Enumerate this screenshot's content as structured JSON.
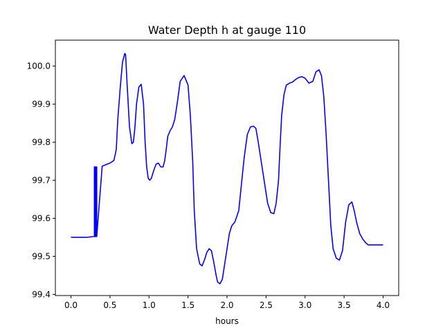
{
  "chart_data": {
    "type": "line",
    "title": "Water Depth h at gauge 110",
    "xlabel": "hours",
    "ylabel": "",
    "xlim": [
      -0.2,
      4.2
    ],
    "ylim": [
      99.397,
      100.068
    ],
    "xticks": [
      0.0,
      0.5,
      1.0,
      1.5,
      2.0,
      2.5,
      3.0,
      3.5,
      4.0
    ],
    "xtick_labels": [
      "0.0",
      "0.5",
      "1.0",
      "1.5",
      "2.0",
      "2.5",
      "3.0",
      "3.5",
      "4.0"
    ],
    "yticks": [
      99.4,
      99.5,
      99.6,
      99.7,
      99.8,
      99.9,
      100.0
    ],
    "ytick_labels": [
      "99.4",
      "99.5",
      "99.6",
      "99.7",
      "99.8",
      "99.9",
      "100.0"
    ],
    "grid": false,
    "legend": "none",
    "series": [
      {
        "color": "#0000ff",
        "x": [
          0.0,
          0.1,
          0.2,
          0.29,
          0.3,
          0.3,
          0.31,
          0.31,
          0.32,
          0.32,
          0.33,
          0.33,
          0.4,
          0.5,
          0.55,
          0.58,
          0.6,
          0.63,
          0.66,
          0.69,
          0.7,
          0.72,
          0.75,
          0.78,
          0.8,
          0.82,
          0.84,
          0.87,
          0.9,
          0.93,
          0.95,
          0.97,
          0.99,
          1.01,
          1.03,
          1.06,
          1.09,
          1.12,
          1.15,
          1.18,
          1.2,
          1.22,
          1.24,
          1.27,
          1.3,
          1.33,
          1.36,
          1.4,
          1.45,
          1.5,
          1.53,
          1.56,
          1.58,
          1.61,
          1.65,
          1.68,
          1.71,
          1.74,
          1.77,
          1.8,
          1.83,
          1.86,
          1.88,
          1.91,
          1.94,
          1.97,
          2.0,
          2.03,
          2.06,
          2.1,
          2.15,
          2.18,
          2.22,
          2.26,
          2.3,
          2.34,
          2.37,
          2.4,
          2.43,
          2.46,
          2.49,
          2.52,
          2.56,
          2.6,
          2.63,
          2.66,
          2.68,
          2.7,
          2.73,
          2.76,
          2.8,
          2.84,
          2.88,
          2.92,
          2.96,
          3.0,
          3.05,
          3.1,
          3.14,
          3.18,
          3.21,
          3.24,
          3.27,
          3.3,
          3.33,
          3.36,
          3.4,
          3.44,
          3.48,
          3.52,
          3.56,
          3.6,
          3.63,
          3.66,
          3.7,
          3.74,
          3.78,
          3.81,
          3.84,
          3.87,
          3.9,
          3.93,
          3.96,
          4.0
        ],
        "y": [
          99.55,
          99.55,
          99.55,
          99.552,
          99.552,
          99.735,
          99.735,
          99.552,
          99.552,
          99.735,
          99.735,
          99.552,
          99.737,
          99.745,
          99.752,
          99.78,
          99.86,
          99.94,
          100.01,
          100.033,
          100.03,
          99.95,
          99.84,
          99.796,
          99.8,
          99.84,
          99.9,
          99.945,
          99.952,
          99.9,
          99.8,
          99.735,
          99.705,
          99.7,
          99.705,
          99.725,
          99.742,
          99.745,
          99.735,
          99.735,
          99.75,
          99.78,
          99.815,
          99.83,
          99.84,
          99.86,
          99.9,
          99.96,
          99.975,
          99.95,
          99.87,
          99.75,
          99.62,
          99.52,
          99.48,
          99.475,
          99.49,
          99.51,
          99.52,
          99.515,
          99.485,
          99.45,
          99.432,
          99.428,
          99.44,
          99.48,
          99.52,
          99.56,
          99.58,
          99.59,
          99.62,
          99.68,
          99.76,
          99.82,
          99.84,
          99.842,
          99.836,
          99.8,
          99.76,
          99.72,
          99.68,
          99.64,
          99.615,
          99.612,
          99.64,
          99.7,
          99.79,
          99.87,
          99.925,
          99.95,
          99.955,
          99.958,
          99.965,
          99.97,
          99.972,
          99.968,
          99.955,
          99.96,
          99.985,
          99.99,
          99.975,
          99.92,
          99.82,
          99.7,
          99.58,
          99.52,
          99.495,
          99.49,
          99.515,
          99.59,
          99.635,
          99.643,
          99.62,
          99.59,
          99.56,
          99.545,
          99.535,
          99.53,
          99.53,
          99.53,
          99.53,
          99.53,
          99.53,
          99.53
        ]
      }
    ]
  }
}
